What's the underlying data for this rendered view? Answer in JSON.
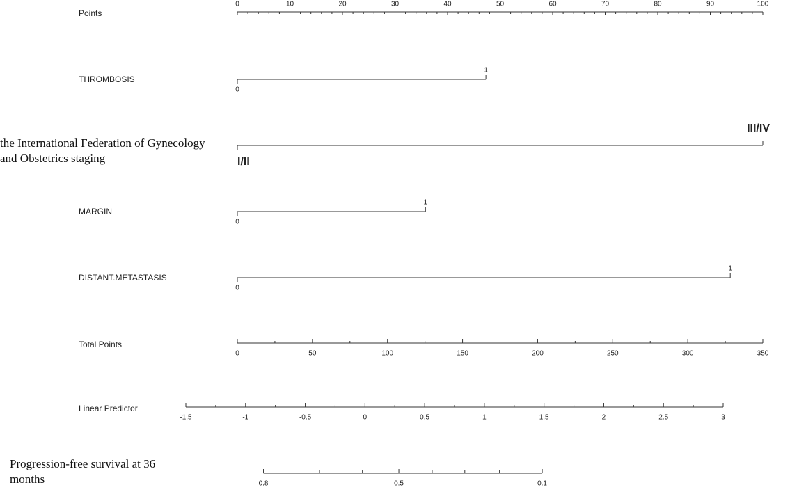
{
  "chart_data": {
    "type": "nomogram",
    "points": {
      "label": "Points",
      "xlim": [
        0,
        100
      ],
      "xticks": [
        0,
        10,
        20,
        30,
        40,
        50,
        60,
        70,
        80,
        90,
        100
      ],
      "minor_ticks": [
        2,
        4,
        6,
        8,
        12,
        14,
        16,
        18,
        22,
        24,
        26,
        28,
        32,
        34,
        36,
        38,
        42,
        44,
        46,
        48,
        52,
        54,
        56,
        58,
        62,
        64,
        66,
        68,
        72,
        74,
        76,
        78,
        82,
        84,
        86,
        88,
        92,
        94,
        96,
        98
      ]
    },
    "variables": [
      {
        "name": "THROMBOSIS",
        "levels": [
          {
            "label": "0",
            "points": 0
          },
          {
            "label": "1",
            "points": 47.3
          }
        ]
      },
      {
        "name": "the International Federation of Gynecology and Obstetrics staging",
        "levels": [
          {
            "label": "I/II",
            "points": 0
          },
          {
            "label": "III/IV",
            "points": 100
          }
        ]
      },
      {
        "name": "MARGIN",
        "levels": [
          {
            "label": "0",
            "points": 0
          },
          {
            "label": "1",
            "points": 35.8
          }
        ]
      },
      {
        "name": "DISTANT.METASTASIS",
        "levels": [
          {
            "label": "0",
            "points": 0
          },
          {
            "label": "1",
            "points": 93.8
          }
        ]
      }
    ],
    "total_points": {
      "label": "Total Points",
      "xlim": [
        0,
        350
      ],
      "xticks": [
        0,
        50,
        100,
        150,
        200,
        250,
        300,
        350
      ],
      "minor_ticks": [
        25,
        75,
        125,
        175,
        225,
        275,
        325
      ]
    },
    "linear_predictor": {
      "label": "Linear Predictor",
      "xlim": [
        -1.5,
        3
      ],
      "xticks": [
        -1.5,
        -1,
        -0.5,
        0,
        0.5,
        1,
        1.5,
        2,
        2.5,
        3
      ],
      "minor_ticks": [
        -1.25,
        -0.75,
        -0.25,
        0.25,
        0.75,
        1.25,
        1.75,
        2.25,
        2.75
      ]
    },
    "survival": {
      "label": "Progression-free survival at 36 months",
      "xlim": [
        0.8,
        0.1
      ],
      "xticks": [
        0.8,
        0.5,
        0.1
      ],
      "minor_ticks": [
        0.7,
        0.6,
        0.4,
        0.3,
        0.2
      ]
    }
  }
}
